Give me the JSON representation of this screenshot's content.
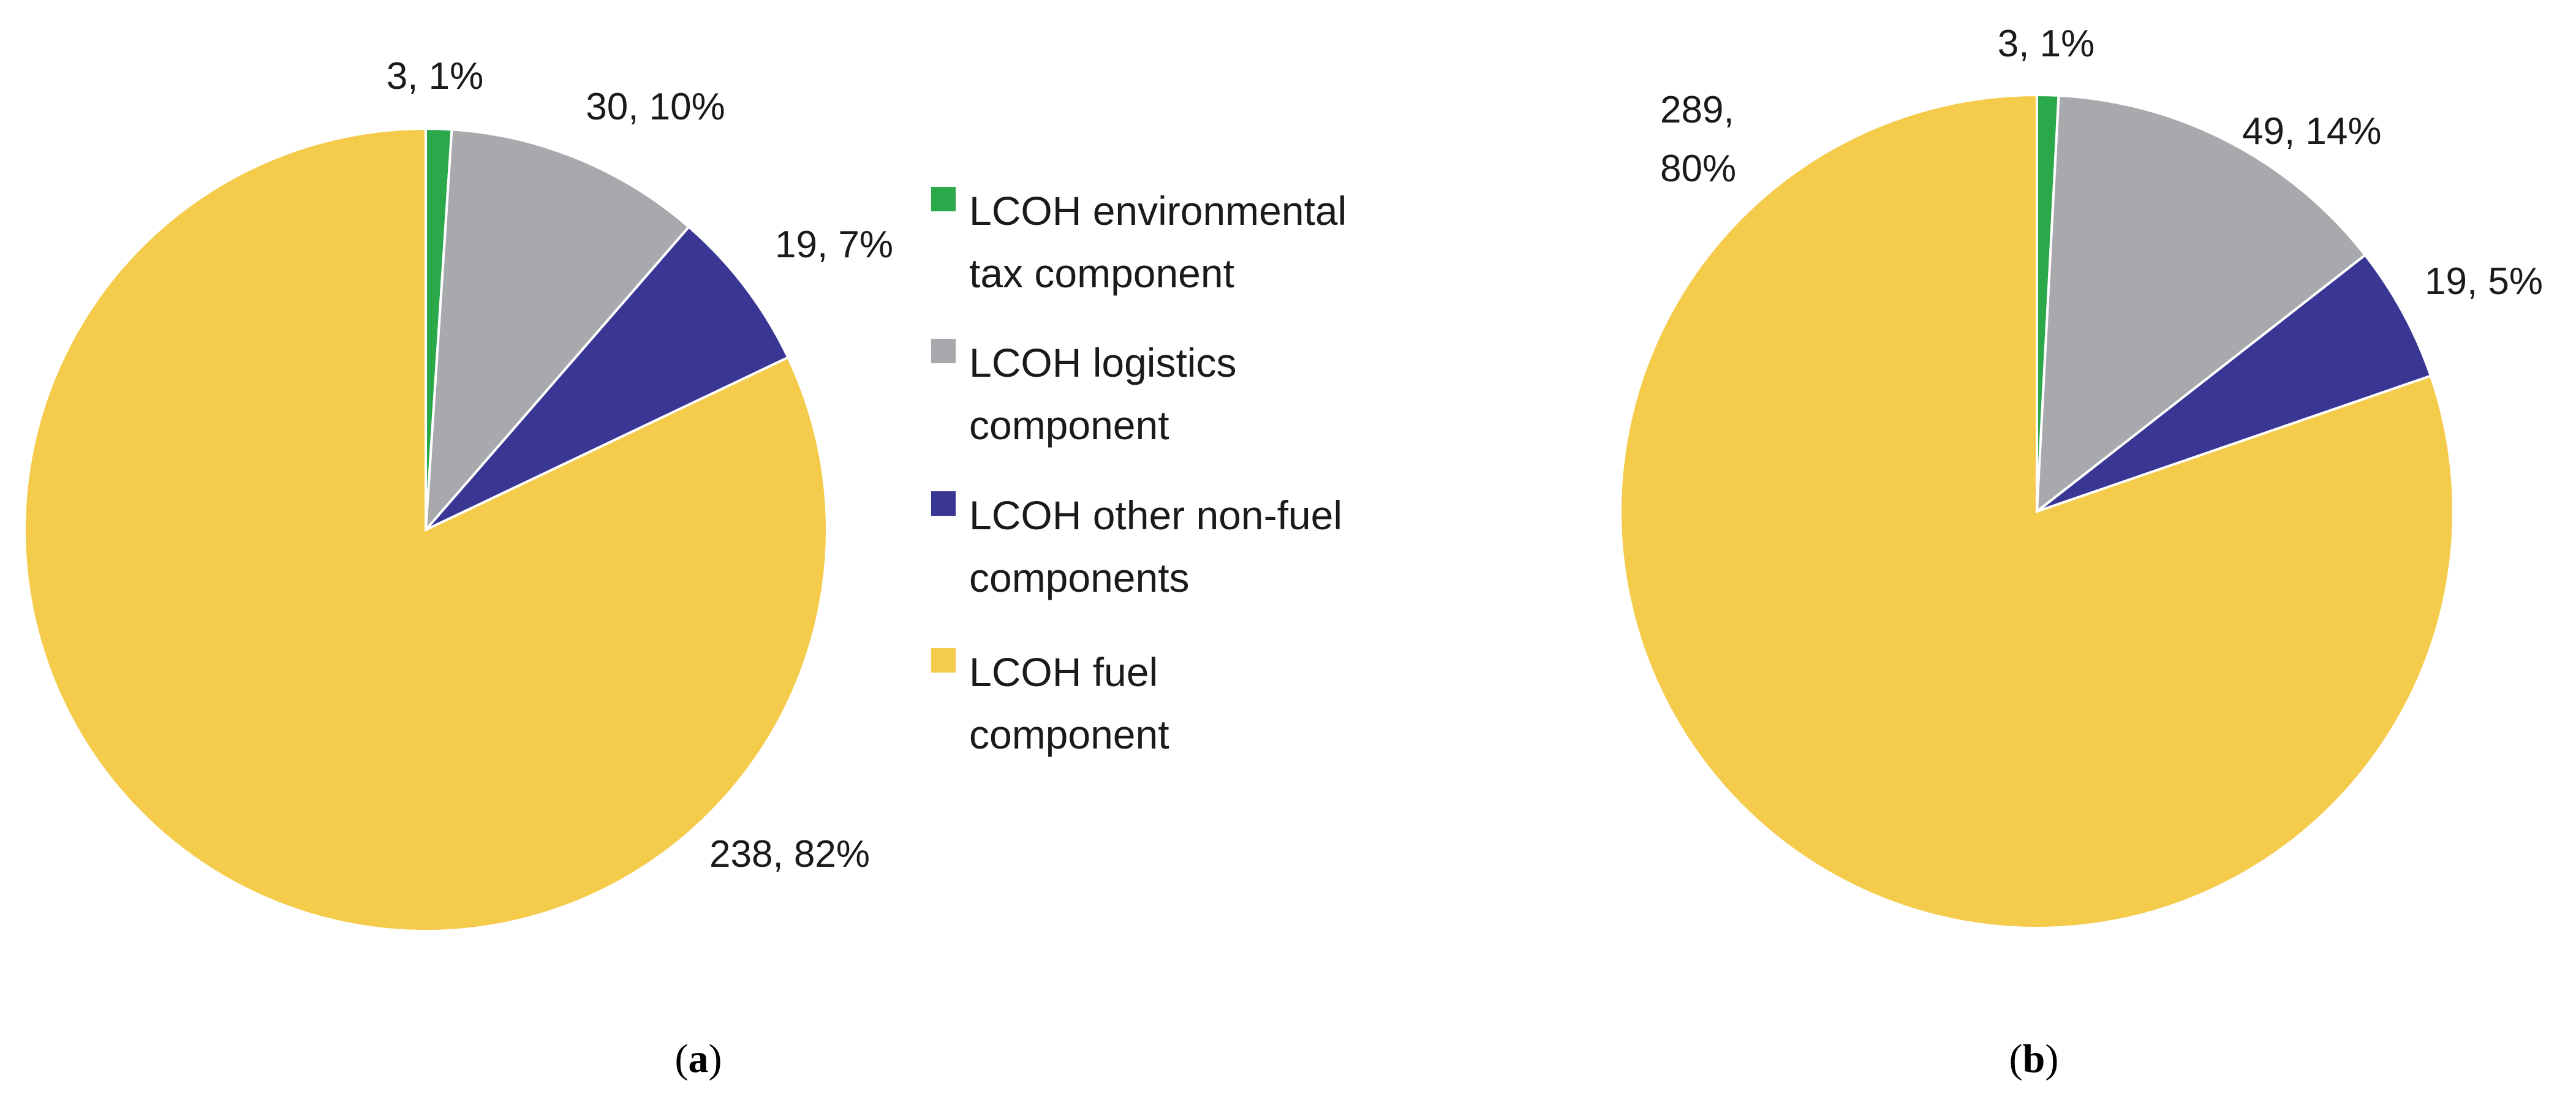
{
  "chart_data": [
    {
      "type": "pie",
      "panel": "a",
      "categories": [
        "LCOH environmental tax component",
        "LCOH logistics component",
        "LCOH other non-fuel components",
        "LCOH fuel component"
      ],
      "values": [
        3,
        30,
        19,
        238
      ],
      "percents": [
        "1%",
        "10%",
        "7%",
        "82%"
      ],
      "labels": [
        "3, 1%",
        "30, 10%",
        "19, 7%",
        "238, 82%"
      ],
      "start_angle": "12 o'clock",
      "direction": "clockwise"
    },
    {
      "type": "pie",
      "panel": "b",
      "categories": [
        "LCOH environmental tax component",
        "LCOH logistics component",
        "LCOH other non-fuel components",
        "LCOH fuel component"
      ],
      "values": [
        3,
        49,
        19,
        289
      ],
      "percents": [
        "1%",
        "14%",
        "5%",
        "80%"
      ],
      "labels": [
        "3, 1%",
        "49, 14%",
        "19, 5%",
        [
          "289,",
          "80%"
        ]
      ],
      "start_angle": "12 o'clock",
      "direction": "clockwise"
    }
  ],
  "legend": {
    "placement": "between-panels",
    "items": [
      {
        "lines": [
          "LCOH environmental",
          "tax component"
        ],
        "color": "#2BA84A"
      },
      {
        "lines": [
          "LCOH logistics",
          "component"
        ],
        "color": "#A7A9AC"
      },
      {
        "lines": [
          "LCOH other non-fuel",
          "components"
        ],
        "color": "#3A3694"
      },
      {
        "lines": [
          "LCOH fuel",
          "component"
        ],
        "color": "#F5CB4C"
      }
    ]
  },
  "colors": [
    "#2BA84A",
    "#A7A9AC",
    "#3A3694",
    "#F5CB4C"
  ],
  "captions": [
    {
      "open": "(",
      "letter": "a",
      "close": ")"
    },
    {
      "open": "(",
      "letter": "b",
      "close": ")"
    }
  ]
}
